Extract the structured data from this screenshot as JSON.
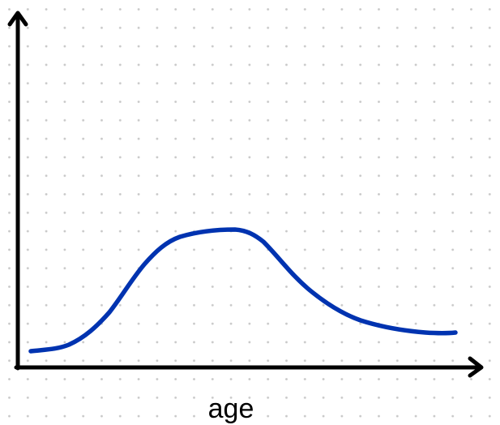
{
  "x_axis_label": "age"
}
